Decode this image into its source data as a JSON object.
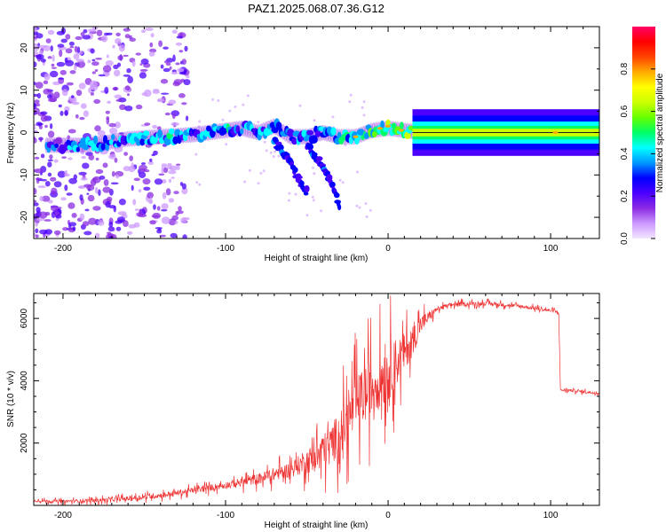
{
  "title": "PAZ1.2025.068.07.36.G12",
  "chart_data": [
    {
      "type": "heatmap",
      "xlabel": "Height of straight line (km)",
      "ylabel": "Frequency (Hz)",
      "xlim": [
        -218,
        130
      ],
      "ylim": [
        -25,
        25
      ],
      "xticks": [
        -200,
        -100,
        0,
        100
      ],
      "yticks": [
        20,
        10,
        0,
        -10,
        -20
      ],
      "colorbar": {
        "label": "Normalized spectral amplitude",
        "ticks": [
          0.0,
          0.2,
          0.4,
          0.6,
          0.8
        ],
        "range": [
          0,
          1
        ],
        "colors": [
          "#f2e6ff",
          "#cc99ff",
          "#8a2be2",
          "#4b00ff",
          "#0000ff",
          "#0099ff",
          "#00ffff",
          "#00ff66",
          "#66ff00",
          "#ccff00",
          "#ffff00",
          "#ffaa00",
          "#ff4400",
          "#ff0000",
          "#ff0066"
        ]
      },
      "ridge": {
        "x": [
          -210,
          -190,
          -175,
          -160,
          -140,
          -120,
          -100,
          -90,
          -80,
          -70,
          -60,
          -50,
          -40,
          -30,
          -20,
          -10,
          0,
          10,
          20,
          50,
          80,
          100,
          130
        ],
        "freq": [
          -3,
          -3,
          -2.5,
          -1.5,
          -1,
          -0.5,
          0.5,
          1,
          0,
          1.5,
          -1,
          -1,
          0,
          -1,
          -1,
          0.5,
          1,
          0.5,
          0,
          0,
          0,
          0,
          0
        ],
        "amplitude": [
          0.25,
          0.3,
          0.35,
          0.35,
          0.35,
          0.35,
          0.35,
          0.32,
          0.32,
          0.35,
          0.35,
          0.35,
          0.35,
          0.38,
          0.4,
          0.45,
          0.5,
          0.5,
          0.6,
          0.6,
          0.6,
          0.6,
          0.6
        ]
      },
      "branches": [
        {
          "x": [
            -70,
            -60,
            -55,
            -50
          ],
          "freq": [
            -2,
            -7,
            -11,
            -14
          ]
        },
        {
          "x": [
            -50,
            -40,
            -35,
            -30
          ],
          "freq": [
            -3,
            -8,
            -12,
            -17
          ]
        }
      ]
    },
    {
      "type": "line",
      "xlabel": "Height of straight line (km)",
      "ylabel": "SNR (10 * v/v)",
      "xlim": [
        -218,
        130
      ],
      "ylim": [
        0,
        6800
      ],
      "xticks": [
        -200,
        -100,
        0,
        100
      ],
      "yticks": [
        2000,
        4000,
        6000
      ],
      "color": "#ee3333",
      "envelope": {
        "x": [
          -218,
          -200,
          -180,
          -160,
          -140,
          -120,
          -100,
          -80,
          -60,
          -45,
          -35,
          -25,
          -20,
          -10,
          0,
          10,
          15,
          20,
          30,
          40,
          60,
          80,
          100,
          105,
          106,
          110,
          130
        ],
        "y": [
          150,
          130,
          160,
          220,
          320,
          480,
          650,
          850,
          1150,
          1550,
          1950,
          2700,
          3200,
          3800,
          4300,
          4900,
          5300,
          5800,
          6300,
          6450,
          6480,
          6400,
          6250,
          6200,
          3700,
          3700,
          3600
        ]
      },
      "noise": {
        "x": [
          -218,
          -100,
          -60,
          -40,
          -20,
          0,
          20,
          30,
          130
        ],
        "amplitude": [
          60,
          180,
          400,
          900,
          1500,
          1600,
          500,
          120,
          70
        ]
      }
    }
  ]
}
